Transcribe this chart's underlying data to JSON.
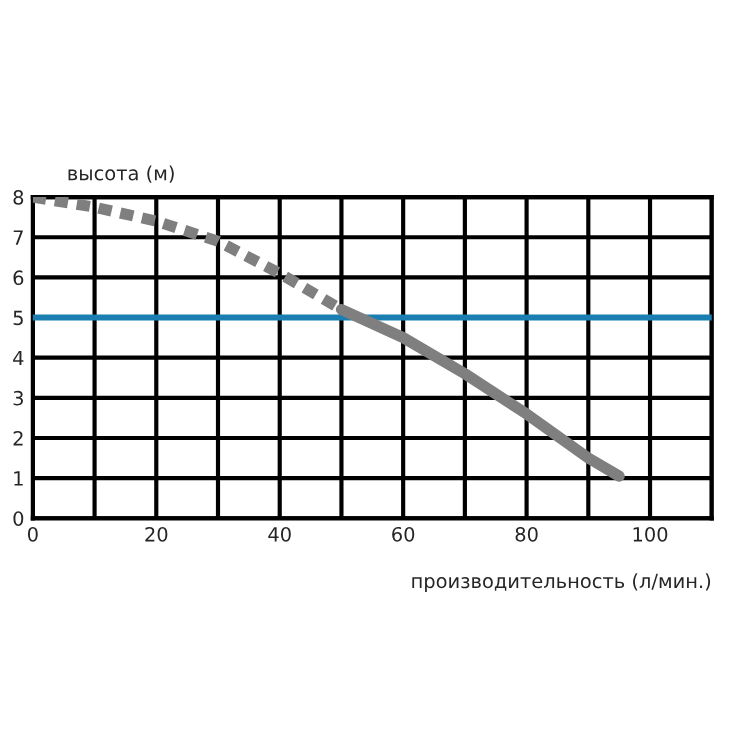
{
  "chart_data": {
    "type": "line",
    "xlabel": "производительность (л/мин.)",
    "ylabel": "высота (м)",
    "xlim": [
      0,
      110
    ],
    "ylim": [
      0,
      8
    ],
    "xticks": [
      0,
      {
        "value": 10,
        "label": null
      },
      20,
      {
        "value": 30,
        "label": null
      },
      40,
      {
        "value": 50,
        "label": null
      },
      60,
      {
        "value": 70,
        "label": null
      },
      80,
      {
        "value": 90,
        "label": null
      },
      100,
      {
        "value": 110,
        "label": null
      }
    ],
    "yticks": [
      0,
      1,
      2,
      3,
      4,
      5,
      6,
      7,
      8
    ],
    "grid": true,
    "marker": "none",
    "series": [
      {
        "color": "#7f7f7f",
        "line_style": "dashed",
        "x": [
          0,
          10,
          20,
          30,
          40,
          50
        ],
        "values": [
          8,
          7.75,
          7.4,
          6.9,
          6.1,
          5.2
        ]
      },
      {
        "color": "#7f7f7f",
        "line_style": "solid",
        "x": [
          50,
          60,
          70,
          80,
          90,
          95
        ],
        "values": [
          5.2,
          4.5,
          3.6,
          2.6,
          1.5,
          1.05
        ]
      }
    ],
    "ref_lines": [
      {
        "axis": "y",
        "value": 5,
        "color": "#1a7fb0"
      }
    ]
  }
}
